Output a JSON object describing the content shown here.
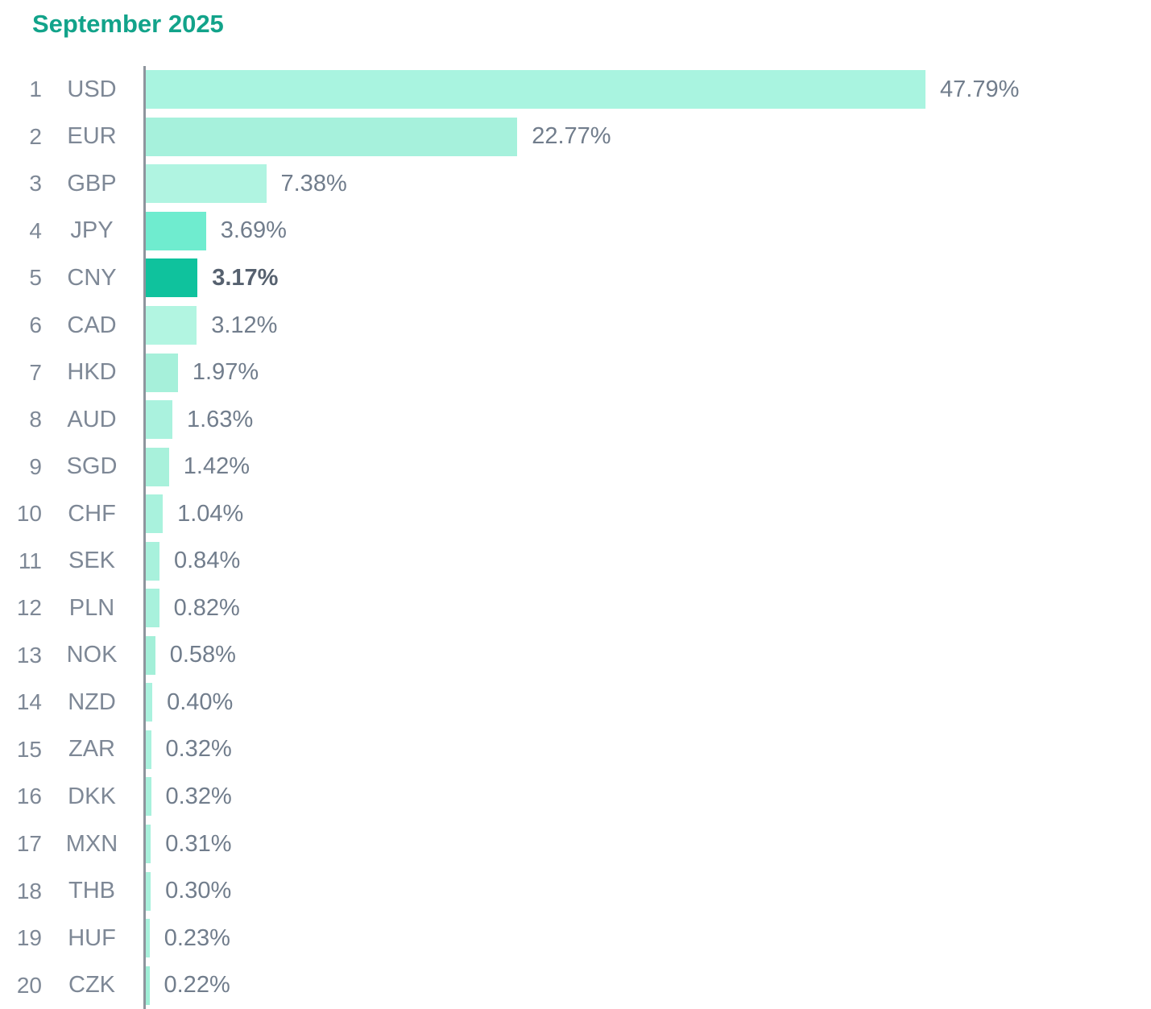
{
  "chart_data": {
    "type": "bar",
    "orientation": "horizontal",
    "title": "September 2025",
    "title_color": "#12a38a",
    "axis_color": "#8e959d",
    "label_color": "#7e8896",
    "value_color": "#717d8c",
    "highlight_value_color": "#56616f",
    "highlight_bar_color": "#0fc29d",
    "value_format": "percent",
    "x_range_percent": [
      0,
      47.79
    ],
    "grid": false,
    "legend": false,
    "categories": [
      "USD",
      "EUR",
      "GBP",
      "JPY",
      "CNY",
      "CAD",
      "HKD",
      "AUD",
      "SGD",
      "CHF",
      "SEK",
      "PLN",
      "NOK",
      "NZD",
      "ZAR",
      "DKK",
      "MXN",
      "THB",
      "HUF",
      "CZK"
    ],
    "values": [
      47.79,
      22.77,
      7.38,
      3.69,
      3.17,
      3.12,
      1.97,
      1.63,
      1.42,
      1.04,
      0.84,
      0.82,
      0.58,
      0.4,
      0.32,
      0.32,
      0.31,
      0.3,
      0.23,
      0.22
    ],
    "rows": [
      {
        "rank": "1",
        "label": "USD",
        "value": 47.79,
        "display": "47.79%",
        "color": "#a9f4e0",
        "highlight": false
      },
      {
        "rank": "2",
        "label": "EUR",
        "value": 22.77,
        "display": "22.77%",
        "color": "#a6f1dc",
        "highlight": false
      },
      {
        "rank": "3",
        "label": "GBP",
        "value": 7.38,
        "display": "7.38%",
        "color": "#b0f4e1",
        "highlight": false
      },
      {
        "rank": "4",
        "label": "JPY",
        "value": 3.69,
        "display": "3.69%",
        "color": "#6feccf",
        "highlight": false
      },
      {
        "rank": "5",
        "label": "CNY",
        "value": 3.17,
        "display": "3.17%",
        "color": "#0fc29d",
        "highlight": true
      },
      {
        "rank": "6",
        "label": "CAD",
        "value": 3.12,
        "display": "3.12%",
        "color": "#b2f5e1",
        "highlight": false
      },
      {
        "rank": "7",
        "label": "HKD",
        "value": 1.97,
        "display": "1.97%",
        "color": "#a6f0da",
        "highlight": false
      },
      {
        "rank": "8",
        "label": "AUD",
        "value": 1.63,
        "display": "1.63%",
        "color": "#aaf2de",
        "highlight": false
      },
      {
        "rank": "9",
        "label": "SGD",
        "value": 1.42,
        "display": "1.42%",
        "color": "#a8f1db",
        "highlight": false
      },
      {
        "rank": "10",
        "label": "CHF",
        "value": 1.04,
        "display": "1.04%",
        "color": "#a9f2dd",
        "highlight": false
      },
      {
        "rank": "11",
        "label": "SEK",
        "value": 0.84,
        "display": "0.84%",
        "color": "#a8f1dc",
        "highlight": false
      },
      {
        "rank": "12",
        "label": "PLN",
        "value": 0.82,
        "display": "0.82%",
        "color": "#a8f1dc",
        "highlight": false
      },
      {
        "rank": "13",
        "label": "NOK",
        "value": 0.58,
        "display": "0.58%",
        "color": "#a3efd8",
        "highlight": false
      },
      {
        "rank": "14",
        "label": "NZD",
        "value": 0.4,
        "display": "0.40%",
        "color": "#aaf2de",
        "highlight": false
      },
      {
        "rank": "15",
        "label": "ZAR",
        "value": 0.32,
        "display": "0.32%",
        "color": "#aaf2de",
        "highlight": false
      },
      {
        "rank": "16",
        "label": "DKK",
        "value": 0.32,
        "display": "0.32%",
        "color": "#a8f1dc",
        "highlight": false
      },
      {
        "rank": "17",
        "label": "MXN",
        "value": 0.31,
        "display": "0.31%",
        "color": "#a8f1dc",
        "highlight": false
      },
      {
        "rank": "18",
        "label": "THB",
        "value": 0.3,
        "display": "0.30%",
        "color": "#a8f1dc",
        "highlight": false
      },
      {
        "rank": "19",
        "label": "HUF",
        "value": 0.23,
        "display": "0.23%",
        "color": "#a8f1dc",
        "highlight": false
      },
      {
        "rank": "20",
        "label": "CZK",
        "value": 0.22,
        "display": "0.22%",
        "color": "#9fefd7",
        "highlight": false
      }
    ]
  }
}
